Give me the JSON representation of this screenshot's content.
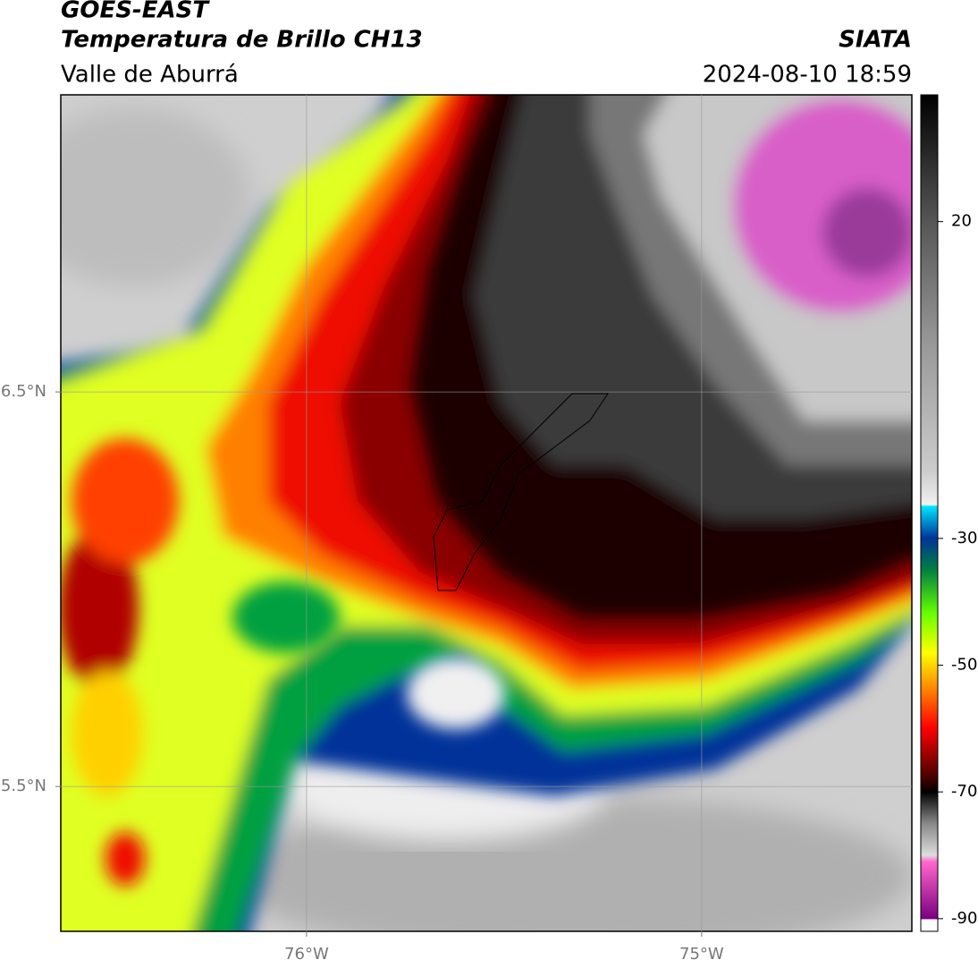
{
  "chart_data": {
    "type": "map",
    "title": "GOES-EAST",
    "subtitle": "Temperatura de Brillo CH13",
    "region": "Valle de Aburrá",
    "source": "SIATA",
    "timestamp": "2024-08-10 18:59",
    "xlim": [
      -76.622,
      -74.468
    ],
    "ylim": [
      5.133,
      7.253
    ],
    "xticks": [
      {
        "value": -76,
        "label": "76°W"
      },
      {
        "value": -75,
        "label": "75°W"
      }
    ],
    "yticks": [
      {
        "value": 6.5,
        "label": "6.5°N"
      },
      {
        "value": 5.5,
        "label": "5.5°N"
      }
    ],
    "grid": true,
    "colorbar_lim": [
      -92,
      40
    ],
    "colorbar_ticks": [
      20,
      -30,
      -50,
      -70,
      -90
    ]
  }
}
